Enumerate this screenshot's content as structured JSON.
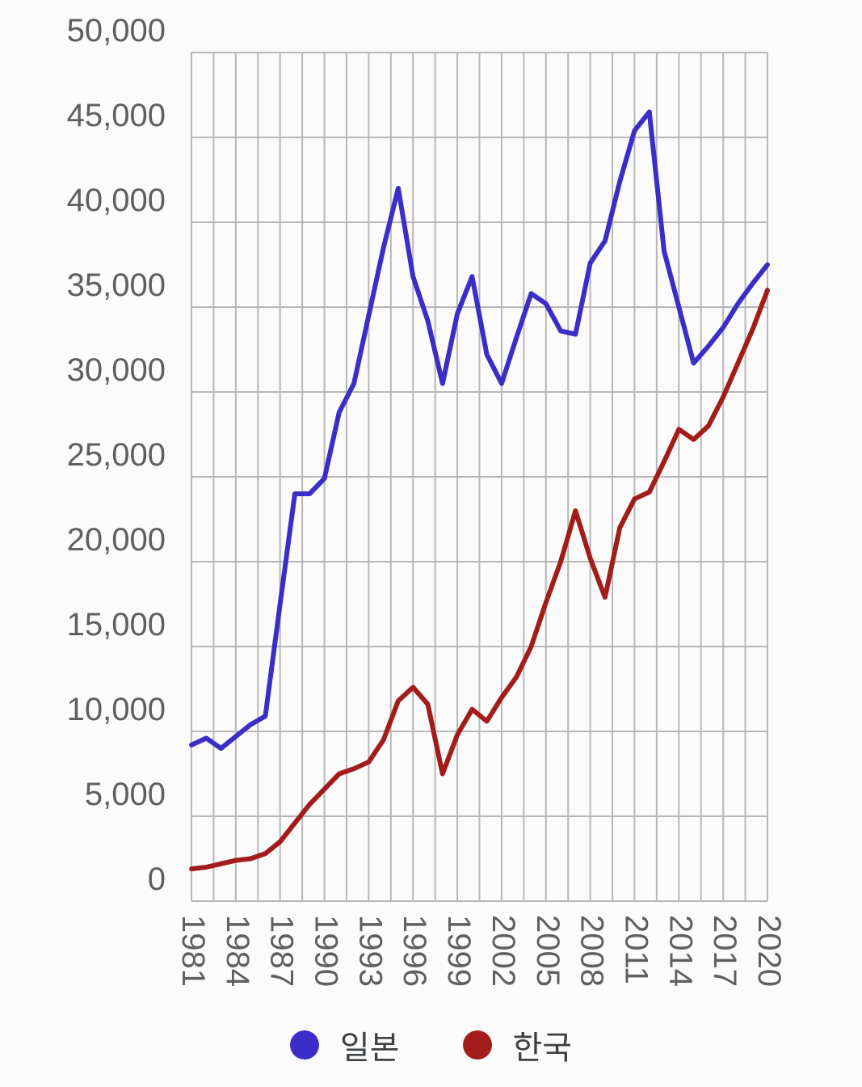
{
  "chart_data": {
    "type": "line",
    "title": "",
    "xlabel": "",
    "ylabel": "",
    "ylim": [
      0,
      50000
    ],
    "grid": {
      "horizontal_step": 5000,
      "vertical_step_years": 1.5,
      "visible": true
    },
    "legend_position": "bottom",
    "x": [
      1981,
      1982,
      1983,
      1984,
      1985,
      1986,
      1987,
      1988,
      1989,
      1990,
      1991,
      1992,
      1993,
      1994,
      1995,
      1996,
      1997,
      1998,
      1999,
      2000,
      2001,
      2002,
      2003,
      2004,
      2005,
      2006,
      2007,
      2008,
      2009,
      2010,
      2011,
      2012,
      2013,
      2014,
      2015,
      2016,
      2017,
      2018,
      2019,
      2020
    ],
    "x_ticks": [
      1981,
      1984,
      1987,
      1990,
      1993,
      1996,
      1999,
      2002,
      2005,
      2008,
      2011,
      2014,
      2017,
      2020
    ],
    "x_tick_labels": [
      "1981",
      "1984",
      "1987",
      "1990",
      "1993",
      "1996",
      "1999",
      "2002",
      "2005",
      "2008",
      "2011",
      "2014",
      "2017",
      "2020"
    ],
    "y_ticks": [
      0,
      5000,
      10000,
      15000,
      20000,
      25000,
      30000,
      35000,
      40000,
      45000,
      50000
    ],
    "y_tick_labels": [
      "0",
      "5,000",
      "10,000",
      "15,000",
      "20,000",
      "25,000",
      "30,000",
      "35,000",
      "40,000",
      "45,000",
      "50,000"
    ],
    "series": [
      {
        "id": "japan",
        "name": "일본",
        "color": "#3b2dc8",
        "values": [
          9200,
          9600,
          9000,
          9700,
          10400,
          10900,
          17500,
          24000,
          24000,
          24900,
          28800,
          30500,
          34500,
          38500,
          42000,
          36800,
          34200,
          30500,
          34600,
          36800,
          32200,
          30500,
          33200,
          35800,
          35200,
          33600,
          33400,
          37600,
          38900,
          42400,
          45400,
          46500,
          38300,
          35000,
          31700,
          32700,
          33800,
          35200,
          36400,
          37500
        ]
      },
      {
        "id": "korea",
        "name": "한국",
        "color": "#a31c1c",
        "values": [
          1900,
          2000,
          2200,
          2400,
          2500,
          2800,
          3500,
          4600,
          5700,
          6600,
          7500,
          7800,
          8200,
          9500,
          11800,
          12600,
          11600,
          7500,
          9800,
          11300,
          10600,
          12000,
          13200,
          15000,
          17600,
          20000,
          23000,
          20200,
          17900,
          22000,
          23700,
          24100,
          25900,
          27800,
          27200,
          28000,
          29700,
          31700,
          33700,
          36000
        ]
      }
    ],
    "style": {
      "gridline_color": "#b7b7b7",
      "axis_label_color": "#5f5f5f",
      "background_color": "#fbfbfb"
    }
  }
}
